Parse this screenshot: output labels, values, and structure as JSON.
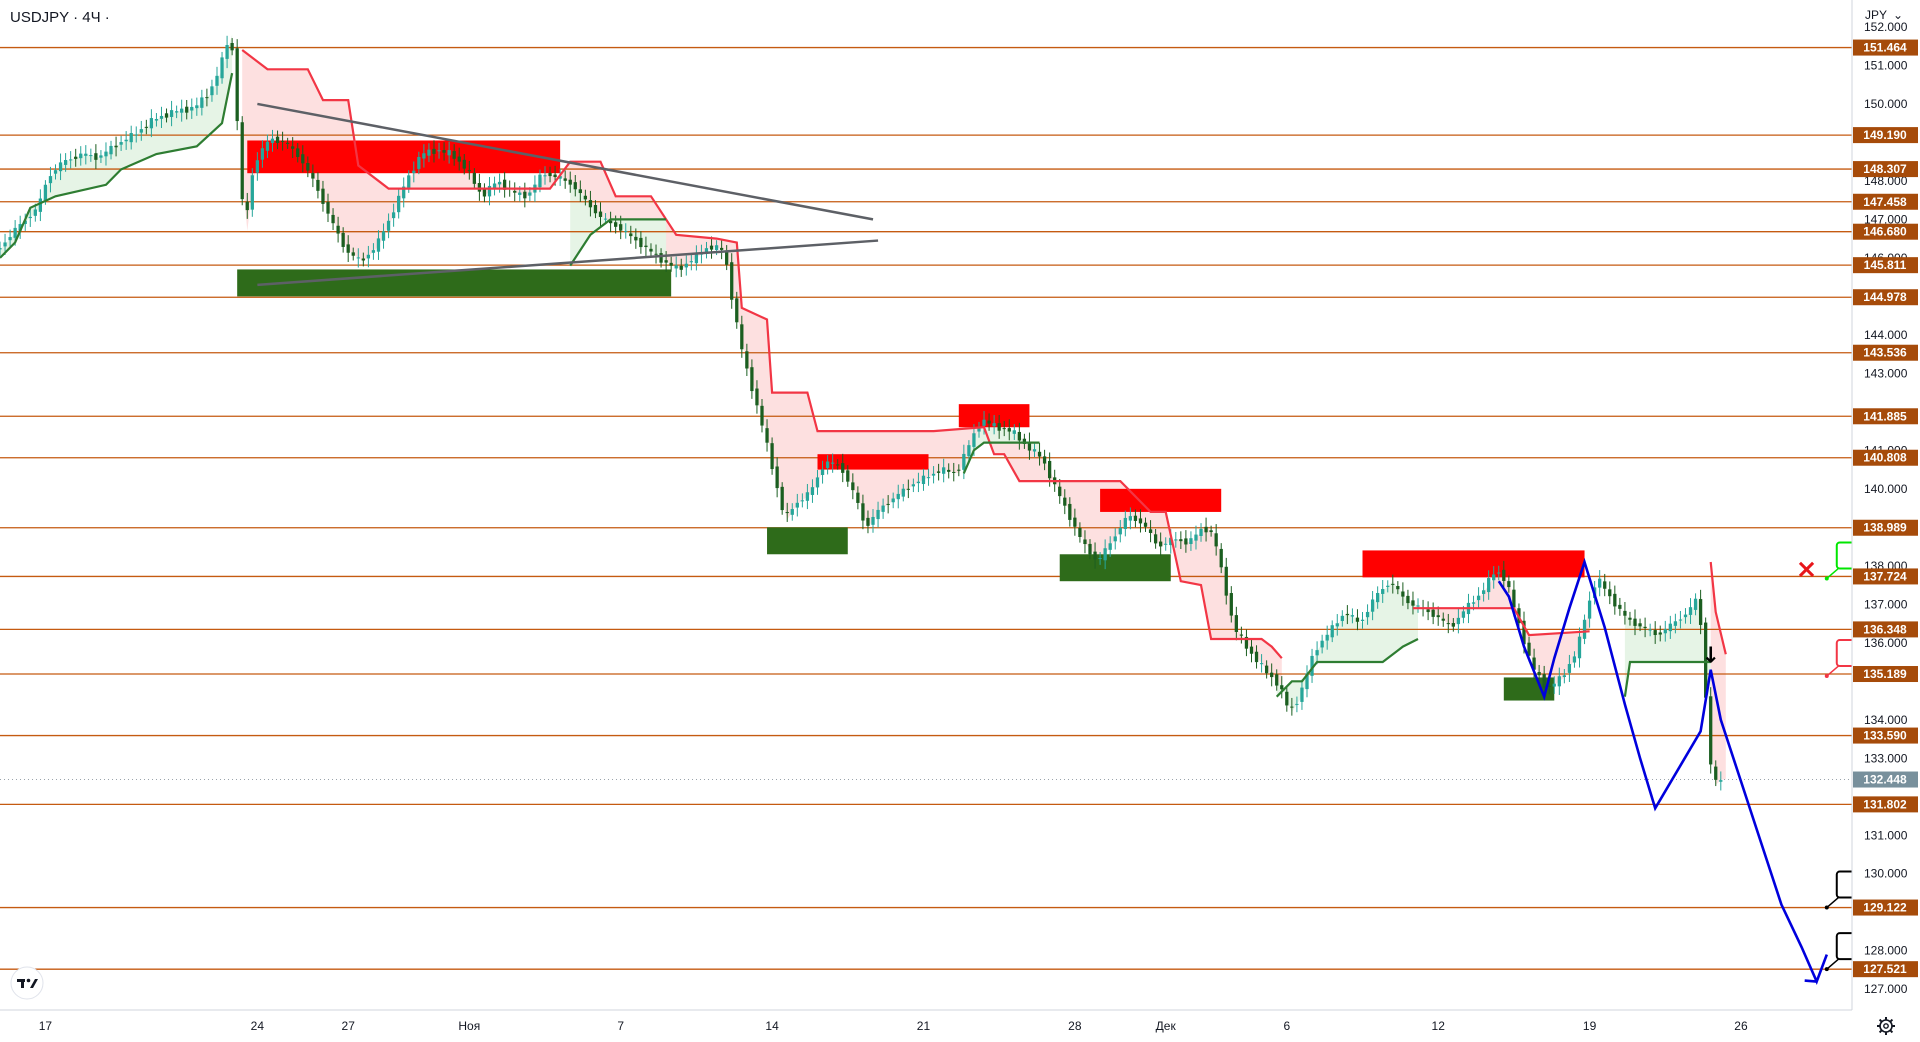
{
  "header": {
    "symbol_title": "USDJPY · 4Ч ·",
    "currency": "JPY",
    "currency_arrow": "⌄"
  },
  "colors": {
    "level": "#c55a11",
    "level_label_bg": "#a64b0a",
    "candle_up": "#26a69a",
    "candle_down": "#1b5e20",
    "supertrend_down": "#f23645",
    "supertrend_up": "#2e7d32",
    "supertrend_down_fill": "#fde0e0",
    "supertrend_up_fill": "#e6f4e6",
    "zone_red": "#ff0000",
    "zone_green": "#2e6b1a",
    "wave": "#0000dd",
    "triangle": "#5d6066",
    "callout_green": "#00e600",
    "callout_red": "#f23645",
    "callout_black": "#000000",
    "current_price_bg": "#78909c",
    "axis_text": "#131722"
  },
  "chart_data": {
    "type": "candlestick",
    "symbol": "USDJPY",
    "timeframe": "4Ч",
    "currency": "JPY",
    "x_ticks": [
      "17",
      "24",
      "27",
      "Ноя",
      "7",
      "14",
      "21",
      "28",
      "Дек",
      "6",
      "12",
      "19",
      "26"
    ],
    "x_tick_bars": [
      0,
      42,
      60,
      84,
      114,
      144,
      174,
      204,
      222,
      246,
      276,
      306,
      336
    ],
    "bar_range": [
      -9,
      358
    ],
    "y_ticks": [
      "152.000",
      "151.000",
      "150.000",
      "148.000",
      "147.000",
      "146.000",
      "144.000",
      "143.000",
      "141.000",
      "140.000",
      "138.000",
      "137.000",
      "136.000",
      "134.000",
      "133.000",
      "131.000",
      "130.000",
      "128.000",
      "127.000"
    ],
    "ylim": [
      126.72,
      152.44
    ],
    "levels": [
      "151.464",
      "149.190",
      "148.307",
      "147.458",
      "146.680",
      "145.811",
      "144.978",
      "143.536",
      "141.885",
      "140.808",
      "138.989",
      "137.724",
      "136.348",
      "135.189",
      "133.590",
      "131.802",
      "129.122",
      "127.521"
    ],
    "current_price": "132.448",
    "price_path": [
      [
        -9,
        146.2
      ],
      [
        -5,
        146.8
      ],
      [
        -1,
        147.3
      ],
      [
        1,
        148.1
      ],
      [
        4,
        148.5
      ],
      [
        8,
        148.7
      ],
      [
        11,
        148.6
      ],
      [
        14,
        148.9
      ],
      [
        18,
        149.2
      ],
      [
        22,
        149.6
      ],
      [
        26,
        149.8
      ],
      [
        30,
        149.9
      ],
      [
        33,
        150.3
      ],
      [
        35,
        150.9
      ],
      [
        37,
        151.8
      ],
      [
        38,
        151.0
      ],
      [
        39,
        148.2
      ],
      [
        40,
        146.7
      ],
      [
        41,
        147.8
      ],
      [
        42,
        148.5
      ],
      [
        45,
        149.1
      ],
      [
        48,
        149.0
      ],
      [
        51,
        148.6
      ],
      [
        54,
        147.9
      ],
      [
        57,
        147.0
      ],
      [
        60,
        146.2
      ],
      [
        63,
        145.9
      ],
      [
        66,
        146.3
      ],
      [
        69,
        147.1
      ],
      [
        72,
        148.0
      ],
      [
        75,
        148.7
      ],
      [
        78,
        148.8
      ],
      [
        81,
        148.7
      ],
      [
        84,
        148.3
      ],
      [
        87,
        147.6
      ],
      [
        90,
        148.0
      ],
      [
        93,
        147.7
      ],
      [
        96,
        147.6
      ],
      [
        99,
        148.2
      ],
      [
        102,
        148.1
      ],
      [
        105,
        147.9
      ],
      [
        108,
        147.4
      ],
      [
        111,
        147.0
      ],
      [
        114,
        146.8
      ],
      [
        117,
        146.5
      ],
      [
        120,
        146.2
      ],
      [
        123,
        145.9
      ],
      [
        126,
        145.7
      ],
      [
        129,
        146.0
      ],
      [
        132,
        146.3
      ],
      [
        135,
        146.2
      ],
      [
        137,
        144.6
      ],
      [
        139,
        143.3
      ],
      [
        141,
        142.4
      ],
      [
        143,
        141.4
      ],
      [
        145,
        140.3
      ],
      [
        147,
        139.2
      ],
      [
        149,
        139.6
      ],
      [
        152,
        139.9
      ],
      [
        155,
        140.7
      ],
      [
        158,
        140.6
      ],
      [
        161,
        139.8
      ],
      [
        163,
        139.0
      ],
      [
        166,
        139.5
      ],
      [
        169,
        139.8
      ],
      [
        172,
        140.1
      ],
      [
        175,
        140.3
      ],
      [
        178,
        140.5
      ],
      [
        181,
        140.4
      ],
      [
        183,
        141.0
      ],
      [
        186,
        141.8
      ],
      [
        189,
        141.6
      ],
      [
        192,
        141.5
      ],
      [
        195,
        141.1
      ],
      [
        198,
        140.8
      ],
      [
        200,
        140.2
      ],
      [
        203,
        139.4
      ],
      [
        206,
        138.6
      ],
      [
        209,
        138.1
      ],
      [
        212,
        138.7
      ],
      [
        215,
        139.3
      ],
      [
        218,
        139.1
      ],
      [
        221,
        138.5
      ],
      [
        224,
        138.7
      ],
      [
        227,
        138.6
      ],
      [
        230,
        139.0
      ],
      [
        232,
        138.8
      ],
      [
        234,
        137.6
      ],
      [
        236,
        136.4
      ],
      [
        239,
        135.8
      ],
      [
        242,
        135.3
      ],
      [
        245,
        134.9
      ],
      [
        247,
        134.2
      ],
      [
        249,
        134.6
      ],
      [
        252,
        135.8
      ],
      [
        255,
        136.3
      ],
      [
        258,
        136.8
      ],
      [
        261,
        136.5
      ],
      [
        264,
        137.2
      ],
      [
        267,
        137.6
      ],
      [
        270,
        137.1
      ],
      [
        273,
        136.9
      ],
      [
        276,
        136.7
      ],
      [
        279,
        136.4
      ],
      [
        282,
        136.9
      ],
      [
        285,
        137.3
      ],
      [
        288,
        137.9
      ],
      [
        290,
        137.6
      ],
      [
        292,
        136.7
      ],
      [
        295,
        135.4
      ],
      [
        298,
        134.8
      ],
      [
        301,
        135.1
      ],
      [
        304,
        135.8
      ],
      [
        306,
        136.9
      ],
      [
        308,
        137.7
      ],
      [
        311,
        137.1
      ],
      [
        314,
        136.6
      ],
      [
        317,
        136.4
      ],
      [
        320,
        136.2
      ],
      [
        323,
        136.5
      ],
      [
        326,
        136.8
      ],
      [
        328,
        137.2
      ],
      [
        329,
        135.8
      ],
      [
        330,
        133.4
      ],
      [
        331,
        132.3
      ],
      [
        332,
        132.448
      ]
    ],
    "supertrend": {
      "down_segments": [
        [
          [
            39,
            151.4
          ],
          [
            44,
            150.9
          ],
          [
            52,
            150.9
          ],
          [
            55,
            150.1
          ],
          [
            60,
            150.1
          ],
          [
            62,
            148.4
          ],
          [
            68,
            147.8
          ],
          [
            100,
            147.8
          ],
          [
            104,
            148.5
          ],
          [
            110,
            148.5
          ],
          [
            113,
            147.6
          ],
          [
            120,
            147.6
          ],
          [
            125,
            146.6
          ],
          [
            133,
            146.5
          ],
          [
            137,
            146.4
          ],
          [
            138,
            144.7
          ],
          [
            143,
            144.4
          ],
          [
            144,
            142.5
          ],
          [
            151,
            142.5
          ],
          [
            153,
            141.5
          ],
          [
            176,
            141.5
          ],
          [
            186,
            141.6
          ],
          [
            188,
            140.9
          ],
          [
            190,
            140.9
          ],
          [
            193,
            140.2
          ],
          [
            213,
            140.2
          ],
          [
            219,
            139.4
          ],
          [
            222,
            139.4
          ],
          [
            225,
            137.6
          ],
          [
            229,
            137.5
          ],
          [
            231,
            136.1
          ],
          [
            241,
            136.1
          ],
          [
            243,
            135.9
          ],
          [
            245,
            135.6
          ]
        ],
        [
          [
            271,
            136.9
          ],
          [
            291,
            136.9
          ],
          [
            294,
            136.2
          ],
          [
            306,
            136.3
          ]
        ],
        [
          [
            330,
            138.1
          ],
          [
            331,
            136.8
          ],
          [
            333,
            135.7
          ]
        ]
      ],
      "up_segments": [
        [
          [
            -9,
            146.0
          ],
          [
            -6,
            146.4
          ],
          [
            -3,
            147.3
          ],
          [
            2,
            147.6
          ],
          [
            12,
            147.9
          ],
          [
            15,
            148.3
          ],
          [
            22,
            148.7
          ],
          [
            30,
            148.9
          ],
          [
            35,
            149.5
          ],
          [
            37,
            150.8
          ]
        ],
        [
          [
            104,
            145.8
          ],
          [
            108,
            146.6
          ],
          [
            112,
            147.0
          ],
          [
            123,
            147.0
          ]
        ],
        [
          [
            182,
            140.4
          ],
          [
            184,
            141.0
          ],
          [
            186,
            141.2
          ],
          [
            197,
            141.2
          ]
        ],
        [
          [
            244,
            134.6
          ],
          [
            247,
            135.0
          ],
          [
            249,
            135.0
          ],
          [
            252,
            135.5
          ],
          [
            265,
            135.5
          ],
          [
            269,
            135.9
          ],
          [
            272,
            136.1
          ]
        ],
        [
          [
            313,
            134.6
          ],
          [
            314,
            135.5
          ],
          [
            330,
            135.5
          ]
        ]
      ]
    },
    "zones": [
      {
        "color": "red",
        "from_bar": 40,
        "to_bar": 102,
        "high": 149.05,
        "low": 148.2
      },
      {
        "color": "green",
        "from_bar": 38,
        "to_bar": 124,
        "high": 145.7,
        "low": 145.0
      },
      {
        "color": "red",
        "from_bar": 153,
        "to_bar": 175,
        "high": 140.9,
        "low": 140.5
      },
      {
        "color": "green",
        "from_bar": 143,
        "to_bar": 159,
        "high": 139.0,
        "low": 138.3
      },
      {
        "color": "red",
        "from_bar": 181,
        "to_bar": 195,
        "high": 142.2,
        "low": 141.6
      },
      {
        "color": "red",
        "from_bar": 209,
        "to_bar": 233,
        "high": 140.0,
        "low": 139.4
      },
      {
        "color": "green",
        "from_bar": 201,
        "to_bar": 223,
        "high": 138.3,
        "low": 137.6
      },
      {
        "color": "red",
        "from_bar": 261,
        "to_bar": 305,
        "high": 138.4,
        "low": 137.7
      },
      {
        "color": "green",
        "from_bar": 289,
        "to_bar": 299,
        "high": 135.1,
        "low": 134.5
      }
    ],
    "triangle_lines": [
      [
        [
          42,
          150.0
        ],
        [
          164,
          147.0
        ]
      ],
      [
        [
          42,
          145.3
        ],
        [
          165,
          146.45
        ]
      ]
    ],
    "wave_path": [
      [
        288,
        137.6
      ],
      [
        290,
        137.2
      ],
      [
        293,
        135.9
      ],
      [
        297,
        134.6
      ],
      [
        299,
        135.6
      ],
      [
        302,
        136.9
      ],
      [
        305,
        138.1
      ],
      [
        309,
        136.4
      ],
      [
        313,
        134.4
      ],
      [
        316,
        133.0
      ],
      [
        319,
        131.7
      ],
      [
        328,
        133.7
      ],
      [
        330,
        135.3
      ],
      [
        332,
        134.0
      ],
      [
        336,
        132.4
      ],
      [
        340,
        130.8
      ],
      [
        344,
        129.2
      ],
      [
        348,
        128.1
      ],
      [
        351,
        127.2
      ],
      [
        353,
        127.9
      ]
    ],
    "callouts": [
      {
        "label": "137.724",
        "color": "green",
        "bar": 353,
        "price": 137.724
      },
      {
        "label": "135.189",
        "color": "red",
        "bar": 353,
        "price": 135.189
      },
      {
        "label": "129.122",
        "color": "black",
        "bar": 353,
        "price": 129.122
      },
      {
        "label": "127.521",
        "color": "black",
        "bar": 353,
        "price": 127.521
      }
    ],
    "markers": [
      {
        "type": "cross",
        "symbol": "×",
        "bar": 349,
        "price": 137.9
      },
      {
        "type": "arrow-down",
        "symbol": "↓",
        "bar": 330,
        "price": 135.7
      }
    ]
  }
}
